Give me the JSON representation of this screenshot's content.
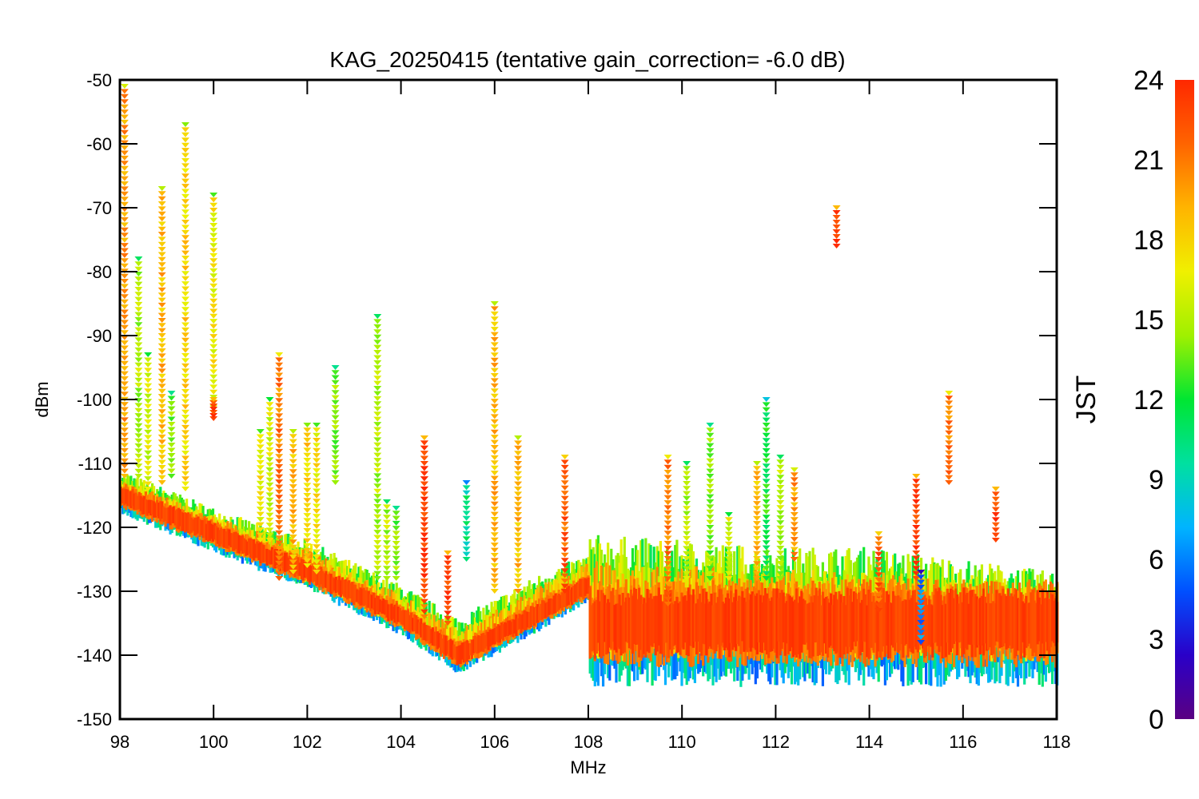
{
  "chart_data": {
    "type": "scatter",
    "title": "KAG_20250415 (tentative gain_correction= -6.0 dB)",
    "xlabel": "MHz",
    "ylabel": "dBm",
    "xlim": [
      98,
      118
    ],
    "ylim": [
      -150,
      -50
    ],
    "x_ticks": [
      "98",
      "100",
      "102",
      "104",
      "106",
      "108",
      "110",
      "112",
      "114",
      "116",
      "118"
    ],
    "y_ticks": [
      "-50",
      "-60",
      "-70",
      "-80",
      "-90",
      "-100",
      "-110",
      "-120",
      "-130",
      "-140",
      "-150"
    ],
    "colorbar": {
      "label": "JST",
      "range": [
        0,
        24
      ],
      "ticks": [
        "0",
        "3",
        "6",
        "9",
        "12",
        "15",
        "18",
        "21",
        "24"
      ],
      "colormap": [
        "#5a0082",
        "#2a00c8",
        "#0050ff",
        "#00b4ff",
        "#00e0a0",
        "#00e632",
        "#a0f000",
        "#f0f000",
        "#ffb400",
        "#ff6400",
        "#ff2800"
      ]
    },
    "noise_floor": {
      "x": [
        98,
        100,
        102,
        104,
        105.2,
        106,
        107,
        108,
        108.01,
        110,
        112,
        114,
        116,
        118
      ],
      "y": [
        -115,
        -121,
        -127,
        -134,
        -140,
        -137,
        -133,
        -129,
        -135,
        -135,
        -135,
        -135,
        -135,
        -135
      ],
      "spread_upper": [
        4,
        4,
        5,
        5,
        6,
        6,
        6,
        5,
        14,
        13,
        12,
        12,
        10,
        8
      ],
      "spread_lower": [
        3,
        3,
        3,
        3,
        3,
        3,
        3,
        3,
        10,
        10,
        10,
        10,
        10,
        10
      ]
    },
    "signals": [
      {
        "freq": 98.1,
        "top": -51,
        "bottom": -112,
        "color_hour": 20
      },
      {
        "freq": 98.4,
        "top": -78,
        "bottom": -112,
        "color_hour": 15
      },
      {
        "freq": 98.6,
        "top": -93,
        "bottom": -114,
        "color_hour": 16
      },
      {
        "freq": 98.9,
        "top": -67,
        "bottom": -113,
        "color_hour": 19
      },
      {
        "freq": 99.1,
        "top": -99,
        "bottom": -112,
        "color_hour": 14
      },
      {
        "freq": 99.4,
        "top": -57,
        "bottom": -114,
        "color_hour": 18
      },
      {
        "freq": 100.0,
        "top": -68,
        "bottom": -102,
        "color_hour": 17
      },
      {
        "freq": 100.0,
        "top": -100,
        "bottom": -103,
        "color_hour": 23
      },
      {
        "freq": 101.0,
        "top": -105,
        "bottom": -122,
        "color_hour": 17
      },
      {
        "freq": 101.2,
        "top": -100,
        "bottom": -122,
        "color_hour": 16
      },
      {
        "freq": 101.4,
        "top": -93,
        "bottom": -128,
        "color_hour": 21
      },
      {
        "freq": 101.7,
        "top": -105,
        "bottom": -127,
        "color_hour": 19
      },
      {
        "freq": 102.0,
        "top": -104,
        "bottom": -126,
        "color_hour": 18
      },
      {
        "freq": 102.2,
        "top": -104,
        "bottom": -127,
        "color_hour": 17
      },
      {
        "freq": 102.6,
        "top": -95,
        "bottom": -113,
        "color_hour": 14
      },
      {
        "freq": 103.5,
        "top": -87,
        "bottom": -128,
        "color_hour": 15
      },
      {
        "freq": 103.7,
        "top": -116,
        "bottom": -128,
        "color_hour": 15
      },
      {
        "freq": 103.9,
        "top": -117,
        "bottom": -128,
        "color_hour": 14
      },
      {
        "freq": 104.5,
        "top": -106,
        "bottom": -134,
        "color_hour": 22
      },
      {
        "freq": 104.5,
        "top": -106,
        "bottom": -130,
        "color_hour": 23
      },
      {
        "freq": 105.0,
        "top": -124,
        "bottom": -135,
        "color_hour": 23
      },
      {
        "freq": 105.4,
        "top": -113,
        "bottom": -125,
        "color_hour": 10
      },
      {
        "freq": 106.0,
        "top": -85,
        "bottom": -130,
        "color_hour": 19
      },
      {
        "freq": 106.5,
        "top": -106,
        "bottom": -130,
        "color_hour": 19
      },
      {
        "freq": 107.5,
        "top": -109,
        "bottom": -130,
        "color_hour": 22
      },
      {
        "freq": 109.7,
        "top": -109,
        "bottom": -132,
        "color_hour": 21
      },
      {
        "freq": 110.1,
        "top": -110,
        "bottom": -128,
        "color_hour": 15
      },
      {
        "freq": 110.6,
        "top": -104,
        "bottom": -128,
        "color_hour": 14
      },
      {
        "freq": 111.0,
        "top": -118,
        "bottom": -128,
        "color_hour": 16
      },
      {
        "freq": 111.6,
        "top": -110,
        "bottom": -128,
        "color_hour": 19
      },
      {
        "freq": 111.8,
        "top": -100,
        "bottom": -128,
        "color_hour": 12
      },
      {
        "freq": 112.1,
        "top": -109,
        "bottom": -128,
        "color_hour": 15
      },
      {
        "freq": 112.4,
        "top": -111,
        "bottom": -125,
        "color_hour": 20
      },
      {
        "freq": 113.3,
        "top": -70,
        "bottom": -76,
        "color_hour": 23
      },
      {
        "freq": 114.2,
        "top": -121,
        "bottom": -133,
        "color_hour": 22
      },
      {
        "freq": 115.0,
        "top": -112,
        "bottom": -128,
        "color_hour": 23
      },
      {
        "freq": 115.1,
        "top": -127,
        "bottom": -138,
        "color_hour": 6
      },
      {
        "freq": 115.7,
        "top": -99,
        "bottom": -113,
        "color_hour": 21
      },
      {
        "freq": 116.7,
        "top": -114,
        "bottom": -122,
        "color_hour": 23
      }
    ]
  }
}
